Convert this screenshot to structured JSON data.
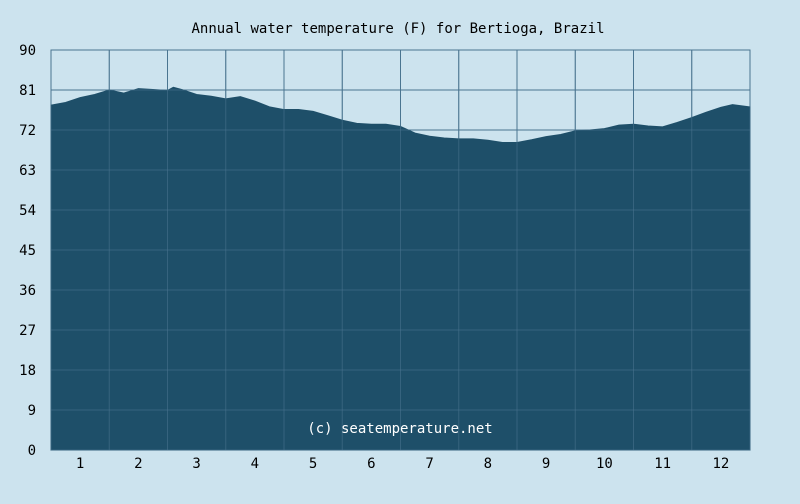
{
  "chart_data": {
    "type": "area",
    "title": "Annual water temperature (F) for Bertioga, Brazil",
    "xlabel": "",
    "ylabel": "",
    "watermark": "(c) seatemperature.net",
    "x_ticks": [
      "1",
      "2",
      "3",
      "4",
      "5",
      "6",
      "7",
      "8",
      "9",
      "10",
      "11",
      "12"
    ],
    "y_ticks": [
      "0",
      "9",
      "18",
      "27",
      "36",
      "45",
      "54",
      "63",
      "72",
      "81",
      "90"
    ],
    "ylim": [
      0,
      90
    ],
    "xlim": [
      0.5,
      12.5
    ],
    "grid": true,
    "colors": {
      "background": "#cce3ee",
      "plot_background": "#cce3ee",
      "fill": "#1e4f69",
      "grid": "#4a7590",
      "text": "#000000",
      "watermark": "#ffffff"
    },
    "series": [
      {
        "values": [
          {
            "x": 0.5,
            "y": 77.6
          },
          {
            "x": 0.75,
            "y": 78.2
          },
          {
            "x": 1.0,
            "y": 79.3
          },
          {
            "x": 1.25,
            "y": 80.0
          },
          {
            "x": 1.5,
            "y": 81.0
          },
          {
            "x": 1.75,
            "y": 80.3
          },
          {
            "x": 2.0,
            "y": 81.3
          },
          {
            "x": 2.25,
            "y": 81.1
          },
          {
            "x": 2.5,
            "y": 80.9
          },
          {
            "x": 2.6,
            "y": 81.6
          },
          {
            "x": 2.75,
            "y": 81.1
          },
          {
            "x": 3.0,
            "y": 80.0
          },
          {
            "x": 3.25,
            "y": 79.6
          },
          {
            "x": 3.5,
            "y": 79.0
          },
          {
            "x": 3.75,
            "y": 79.5
          },
          {
            "x": 4.0,
            "y": 78.5
          },
          {
            "x": 4.25,
            "y": 77.2
          },
          {
            "x": 4.5,
            "y": 76.6
          },
          {
            "x": 4.75,
            "y": 76.6
          },
          {
            "x": 5.0,
            "y": 76.2
          },
          {
            "x": 5.25,
            "y": 75.2
          },
          {
            "x": 5.5,
            "y": 74.2
          },
          {
            "x": 5.75,
            "y": 73.5
          },
          {
            "x": 6.0,
            "y": 73.3
          },
          {
            "x": 6.25,
            "y": 73.3
          },
          {
            "x": 6.5,
            "y": 72.8
          },
          {
            "x": 6.75,
            "y": 71.3
          },
          {
            "x": 7.0,
            "y": 70.6
          },
          {
            "x": 7.25,
            "y": 70.2
          },
          {
            "x": 7.5,
            "y": 70.0
          },
          {
            "x": 7.75,
            "y": 70.0
          },
          {
            "x": 8.0,
            "y": 69.7
          },
          {
            "x": 8.25,
            "y": 69.2
          },
          {
            "x": 8.5,
            "y": 69.2
          },
          {
            "x": 8.75,
            "y": 69.8
          },
          {
            "x": 9.0,
            "y": 70.5
          },
          {
            "x": 9.25,
            "y": 71.0
          },
          {
            "x": 9.5,
            "y": 71.8
          },
          {
            "x": 9.75,
            "y": 72.0
          },
          {
            "x": 10.0,
            "y": 72.3
          },
          {
            "x": 10.25,
            "y": 73.1
          },
          {
            "x": 10.5,
            "y": 73.3
          },
          {
            "x": 10.75,
            "y": 72.9
          },
          {
            "x": 11.0,
            "y": 72.7
          },
          {
            "x": 11.25,
            "y": 73.7
          },
          {
            "x": 11.5,
            "y": 74.8
          },
          {
            "x": 11.75,
            "y": 76.0
          },
          {
            "x": 12.0,
            "y": 77.1
          },
          {
            "x": 12.2,
            "y": 77.7
          },
          {
            "x": 12.5,
            "y": 77.2
          }
        ]
      }
    ]
  }
}
